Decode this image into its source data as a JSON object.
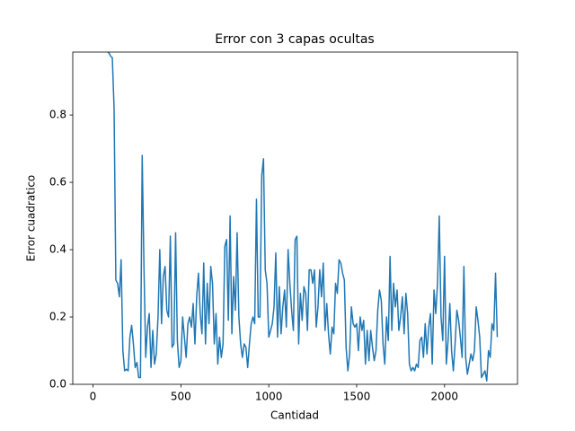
{
  "chart_data": {
    "type": "line",
    "title": "Error con 3 capas ocultas",
    "x_label": "Cantidad",
    "y_label": "Error cuadratico",
    "x": [
      0,
      10,
      20,
      30,
      40,
      50,
      60,
      70,
      80,
      90,
      100,
      110,
      120,
      130,
      140,
      150,
      160,
      170,
      180,
      190,
      200,
      210,
      220,
      230,
      240,
      250,
      260,
      270,
      280,
      290,
      300,
      310,
      320,
      330,
      340,
      350,
      360,
      370,
      380,
      390,
      400,
      410,
      420,
      430,
      440,
      450,
      460,
      470,
      480,
      490,
      500,
      510,
      520,
      530,
      540,
      550,
      560,
      570,
      580,
      590,
      600,
      610,
      620,
      630,
      640,
      650,
      660,
      670,
      680,
      690,
      700,
      710,
      720,
      730,
      740,
      750,
      760,
      770,
      780,
      790,
      800,
      810,
      820,
      830,
      840,
      850,
      860,
      870,
      880,
      890,
      900,
      910,
      920,
      930,
      940,
      950,
      960,
      970,
      980,
      990,
      1000,
      1010,
      1020,
      1030,
      1040,
      1050,
      1060,
      1070,
      1080,
      1090,
      1100,
      1110,
      1120,
      1130,
      1140,
      1150,
      1160,
      1170,
      1180,
      1190,
      1200,
      1210,
      1220,
      1230,
      1240,
      1250,
      1260,
      1270,
      1280,
      1290,
      1300,
      1310,
      1320,
      1330,
      1340,
      1350,
      1360,
      1370,
      1380,
      1390,
      1400,
      1410,
      1420,
      1430,
      1440,
      1450,
      1460,
      1470,
      1480,
      1490,
      1500,
      1510,
      1520,
      1530,
      1540,
      1550,
      1560,
      1570,
      1580,
      1590,
      1600,
      1610,
      1620,
      1630,
      1640,
      1650,
      1660,
      1670,
      1680,
      1690,
      1700,
      1710,
      1720,
      1730,
      1740,
      1750,
      1760,
      1770,
      1780,
      1790,
      1800,
      1810,
      1820,
      1830,
      1840,
      1850,
      1860,
      1870,
      1880,
      1890,
      1900,
      1910,
      1920,
      1930,
      1940,
      1950,
      1960,
      1970,
      1980,
      1990,
      2000,
      2010,
      2020,
      2030,
      2040,
      2050,
      2060,
      2070,
      2080,
      2090,
      2100,
      2110,
      2120,
      2130,
      2140,
      2150,
      2160,
      2170,
      2180,
      2190,
      2200,
      2210,
      2220,
      2230,
      2240,
      2250,
      2260,
      2270,
      2280,
      2290,
      2300
    ],
    "series": [
      {
        "color": "#1f77b4",
        "values": [
          0.99,
          0.99,
          0.99,
          0.99,
          0.99,
          0.99,
          0.99,
          0.99,
          0.99,
          0.985,
          0.975,
          0.97,
          0.82,
          0.31,
          0.3,
          0.26,
          0.37,
          0.1,
          0.04,
          0.045,
          0.04,
          0.14,
          0.175,
          0.12,
          0.05,
          0.065,
          0.02,
          0.02,
          0.68,
          0.35,
          0.08,
          0.17,
          0.21,
          0.05,
          0.16,
          0.06,
          0.09,
          0.2,
          0.4,
          0.18,
          0.32,
          0.35,
          0.22,
          0.2,
          0.44,
          0.11,
          0.12,
          0.45,
          0.13,
          0.05,
          0.07,
          0.2,
          0.14,
          0.08,
          0.18,
          0.2,
          0.17,
          0.24,
          0.12,
          0.26,
          0.33,
          0.21,
          0.15,
          0.36,
          0.12,
          0.3,
          0.18,
          0.35,
          0.3,
          0.12,
          0.21,
          0.06,
          0.14,
          0.08,
          0.12,
          0.41,
          0.43,
          0.19,
          0.5,
          0.15,
          0.32,
          0.22,
          0.45,
          0.2,
          0.12,
          0.08,
          0.12,
          0.11,
          0.05,
          0.12,
          0.18,
          0.2,
          0.18,
          0.55,
          0.2,
          0.2,
          0.62,
          0.67,
          0.34,
          0.3,
          0.14,
          0.16,
          0.18,
          0.23,
          0.39,
          0.14,
          0.29,
          0.15,
          0.23,
          0.28,
          0.17,
          0.4,
          0.3,
          0.22,
          0.16,
          0.43,
          0.44,
          0.12,
          0.27,
          0.19,
          0.29,
          0.27,
          0.16,
          0.34,
          0.34,
          0.3,
          0.34,
          0.17,
          0.23,
          0.34,
          0.26,
          0.36,
          0.16,
          0.24,
          0.15,
          0.09,
          0.17,
          0.15,
          0.3,
          0.27,
          0.37,
          0.36,
          0.33,
          0.31,
          0.11,
          0.04,
          0.09,
          0.23,
          0.18,
          0.17,
          0.18,
          0.1,
          0.2,
          0.16,
          0.19,
          0.06,
          0.16,
          0.07,
          0.16,
          0.11,
          0.07,
          0.1,
          0.22,
          0.28,
          0.25,
          0.12,
          0.06,
          0.2,
          0.13,
          0.38,
          0.16,
          0.3,
          0.23,
          0.28,
          0.16,
          0.2,
          0.26,
          0.15,
          0.27,
          0.21,
          0.06,
          0.04,
          0.05,
          0.04,
          0.06,
          0.05,
          0.13,
          0.14,
          0.08,
          0.18,
          0.09,
          0.17,
          0.21,
          0.06,
          0.28,
          0.21,
          0.3,
          0.5,
          0.2,
          0.13,
          0.38,
          0.06,
          0.13,
          0.24,
          0.1,
          0.04,
          0.12,
          0.22,
          0.19,
          0.14,
          0.08,
          0.35,
          0.08,
          0.03,
          0.06,
          0.09,
          0.07,
          0.1,
          0.23,
          0.19,
          0.14,
          0.02,
          0.03,
          0.04,
          0.01,
          0.1,
          0.08,
          0.18,
          0.16,
          0.33,
          0.14
        ]
      }
    ],
    "xlim": [
      -115,
      2415
    ],
    "ylim": [
      0,
      0.987
    ],
    "xticks": [
      0,
      500,
      1000,
      1500,
      2000
    ],
    "yticks": [
      {
        "value": 0,
        "label": "0.0"
      },
      0.2,
      0.4,
      0.6,
      0.8
    ]
  }
}
